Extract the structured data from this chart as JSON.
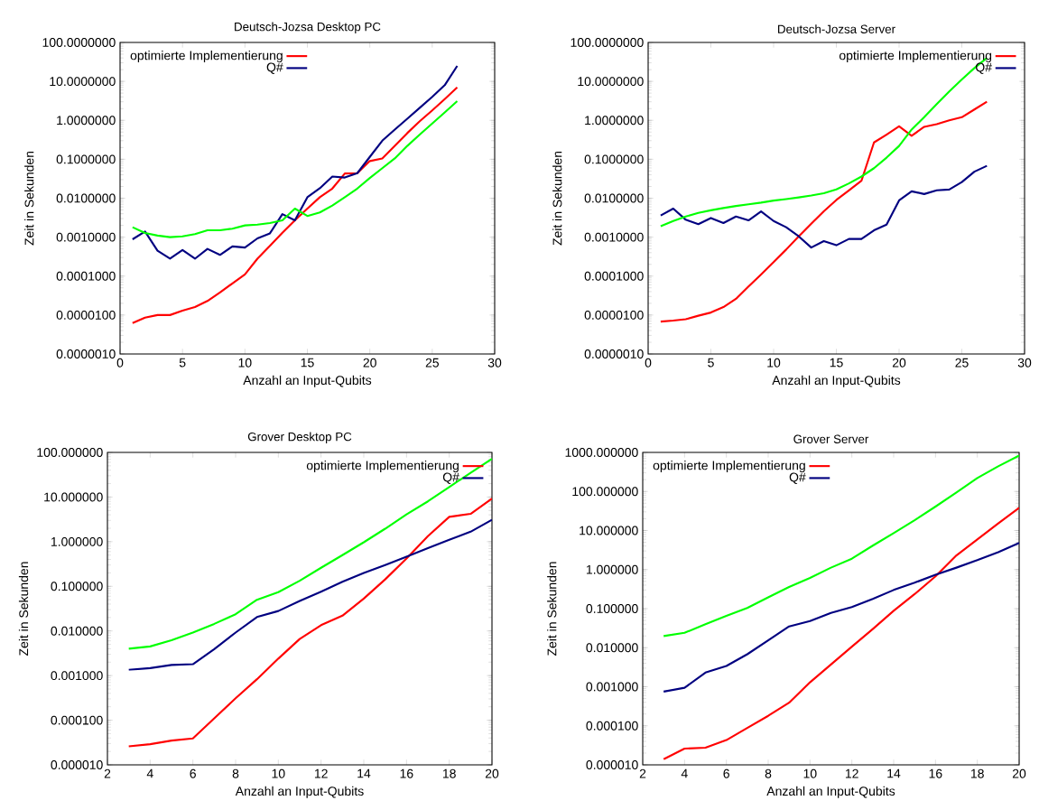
{
  "chart_data": [
    {
      "type": "line",
      "title": "Deutsch-Jozsa Desktop PC",
      "xlabel": "Anzahl an Input-Qubits",
      "ylabel": "Zeit in Sekunden",
      "log": true,
      "legend": "top left",
      "x": [
        1,
        2,
        3,
        4,
        5,
        6,
        7,
        8,
        9,
        10,
        11,
        12,
        13,
        14,
        15,
        16,
        17,
        18,
        19,
        20,
        21,
        22,
        23,
        24,
        25,
        26,
        27
      ],
      "xlim": [
        0,
        30
      ],
      "xticks": [
        0,
        5,
        10,
        15,
        20,
        25,
        30
      ],
      "ylim": [
        1e-06,
        100
      ],
      "yticks": [
        {
          "value": 1e-06,
          "label": "0.0000010"
        },
        {
          "value": 1e-05,
          "label": "0.0000100"
        },
        {
          "value": 0.0001,
          "label": "0.0001000"
        },
        {
          "value": 0.001,
          "label": "0.0010000"
        },
        {
          "value": 0.01,
          "label": "0.0100000"
        },
        {
          "value": 0.1,
          "label": "0.1000000"
        },
        {
          "value": 1,
          "label": "1.0000000"
        },
        {
          "value": 10,
          "label": "10.0000000"
        },
        {
          "value": 100,
          "label": "100.0000000"
        }
      ],
      "series": [
        {
          "name": "optimierte Implementierung",
          "color": "#ff0000",
          "values": [
            6.2e-06,
            8.6e-06,
            1e-05,
            1e-05,
            1.3e-05,
            1.6e-05,
            2.3e-05,
            3.8e-05,
            6.5e-05,
            0.00011,
            0.00028,
            0.0006,
            0.0013,
            0.0027,
            0.0054,
            0.0106,
            0.0177,
            0.043,
            0.044,
            0.09,
            0.105,
            0.22,
            0.47,
            0.95,
            1.8,
            3.5,
            7
          ]
        },
        {
          "name": "Q#",
          "color": "#000080",
          "values": [
            0.00088,
            0.0014,
            0.00045,
            0.00028,
            0.00047,
            0.00028,
            0.0005,
            0.00035,
            0.00058,
            0.00054,
            0.00093,
            0.00125,
            0.0039,
            0.0027,
            0.0106,
            0.018,
            0.036,
            0.034,
            0.044,
            0.115,
            0.3,
            0.58,
            1.1,
            2.1,
            4,
            8,
            25
          ]
        },
        {
          "color": "#00ff00",
          "values": [
            0.0018,
            0.00128,
            0.0011,
            0.001,
            0.00105,
            0.0012,
            0.0015,
            0.0015,
            0.00165,
            0.002,
            0.0021,
            0.0023,
            0.0027,
            0.0054,
            0.0035,
            0.0043,
            0.0065,
            0.0106,
            0.0177,
            0.033,
            0.059,
            0.105,
            0.22,
            0.43,
            0.83,
            1.6,
            3.1
          ]
        }
      ]
    },
    {
      "type": "line",
      "title": "Deutsch-Jozsa Server",
      "xlabel": "Anzahl an Input-Qubits",
      "ylabel": "Zeit in Sekunden",
      "log": true,
      "legend": "top right",
      "x": [
        1,
        2,
        3,
        4,
        5,
        6,
        7,
        8,
        9,
        10,
        11,
        12,
        13,
        14,
        15,
        16,
        17,
        18,
        19,
        20,
        21,
        22,
        23,
        24,
        25,
        26,
        27
      ],
      "xlim": [
        0,
        30
      ],
      "xticks": [
        0,
        5,
        10,
        15,
        20,
        25,
        30
      ],
      "ylim": [
        1e-06,
        100
      ],
      "yticks": [
        {
          "value": 1e-06,
          "label": "0.0000010"
        },
        {
          "value": 1e-05,
          "label": "0.0000100"
        },
        {
          "value": 0.0001,
          "label": "0.0001000"
        },
        {
          "value": 0.001,
          "label": "0.0010000"
        },
        {
          "value": 0.01,
          "label": "0.0100000"
        },
        {
          "value": 0.1,
          "label": "0.1000000"
        },
        {
          "value": 1,
          "label": "1.0000000"
        },
        {
          "value": 10,
          "label": "10.0000000"
        },
        {
          "value": 100,
          "label": "100.0000000"
        }
      ],
      "series": [
        {
          "name": "optimierte Implementierung",
          "color": "#ff0000",
          "values": [
            6.8e-06,
            7.2e-06,
            7.8e-06,
            9.6e-06,
            1.16e-05,
            1.6e-05,
            2.6e-05,
            5.4e-05,
            0.00011,
            0.00023,
            0.00048,
            0.00105,
            0.0022,
            0.0046,
            0.009,
            0.0158,
            0.028,
            0.27,
            0.43,
            0.7,
            0.4,
            0.68,
            0.8,
            1.0,
            1.2,
            1.9,
            3
          ]
        },
        {
          "name": "Q#",
          "color": "#000080",
          "values": [
            0.0036,
            0.0054,
            0.0028,
            0.00215,
            0.0031,
            0.0023,
            0.0034,
            0.0027,
            0.0046,
            0.0026,
            0.0018,
            0.00105,
            0.00054,
            0.00079,
            0.00062,
            0.0009,
            0.0009,
            0.0015,
            0.0021,
            0.0088,
            0.015,
            0.0128,
            0.016,
            0.0167,
            0.026,
            0.048,
            0.068
          ]
        },
        {
          "color": "#00ff00",
          "values": [
            0.0019,
            0.0026,
            0.0034,
            0.0042,
            0.0049,
            0.0056,
            0.0063,
            0.007,
            0.0077,
            0.0087,
            0.0095,
            0.0105,
            0.0117,
            0.0134,
            0.0168,
            0.024,
            0.036,
            0.059,
            0.11,
            0.22,
            0.58,
            1.2,
            2.6,
            5.5,
            11.2,
            22,
            40
          ]
        }
      ]
    },
    {
      "type": "line",
      "title": "Grover Desktop PC",
      "xlabel": "Anzahl an Input-Qubits",
      "ylabel": "Zeit in Sekunden",
      "log": true,
      "legend": "top right",
      "x": [
        3,
        4,
        5,
        6,
        7,
        8,
        9,
        10,
        11,
        12,
        13,
        14,
        15,
        16,
        17,
        18,
        19,
        20
      ],
      "xlim": [
        2,
        20
      ],
      "xticks": [
        2,
        4,
        6,
        8,
        10,
        12,
        14,
        16,
        18,
        20
      ],
      "ylim": [
        1e-05,
        100
      ],
      "yticks": [
        {
          "value": 1e-05,
          "label": "0.000010"
        },
        {
          "value": 0.0001,
          "label": "0.000100"
        },
        {
          "value": 0.001,
          "label": "0.001000"
        },
        {
          "value": 0.01,
          "label": "0.010000"
        },
        {
          "value": 0.1,
          "label": "0.100000"
        },
        {
          "value": 1,
          "label": "1.000000"
        },
        {
          "value": 10,
          "label": "10.000000"
        },
        {
          "value": 100,
          "label": "100.000000"
        }
      ],
      "series": [
        {
          "name": "optimierte Implementierung",
          "color": "#ff0000",
          "values": [
            2.6e-05,
            2.9e-05,
            3.5e-05,
            3.9e-05,
            0.00011,
            0.00031,
            0.00083,
            0.0024,
            0.0066,
            0.0135,
            0.022,
            0.053,
            0.143,
            0.42,
            1.33,
            3.6,
            4.2,
            9.2
          ]
        },
        {
          "name": "Q#",
          "color": "#000080",
          "values": [
            0.00135,
            0.00147,
            0.00173,
            0.0018,
            0.0039,
            0.0092,
            0.0205,
            0.028,
            0.047,
            0.076,
            0.126,
            0.2,
            0.3,
            0.46,
            0.72,
            1.1,
            1.67,
            3.1
          ]
        },
        {
          "color": "#00ff00",
          "values": [
            0.004,
            0.0045,
            0.0062,
            0.0092,
            0.0144,
            0.0237,
            0.05,
            0.074,
            0.133,
            0.26,
            0.5,
            0.97,
            1.95,
            4.1,
            8,
            16.8,
            35,
            72
          ]
        }
      ]
    },
    {
      "type": "line",
      "title": "Grover Server",
      "xlabel": "Anzahl an Input-Qubits",
      "ylabel": "Zeit in Sekunden",
      "log": true,
      "legend": "top left",
      "x": [
        3,
        4,
        5,
        6,
        7,
        8,
        9,
        10,
        11,
        12,
        13,
        14,
        15,
        16,
        17,
        18,
        19,
        20
      ],
      "xlim": [
        2,
        20
      ],
      "xticks": [
        2,
        4,
        6,
        8,
        10,
        12,
        14,
        16,
        18,
        20
      ],
      "ylim": [
        1e-05,
        1000
      ],
      "yticks": [
        {
          "value": 1e-05,
          "label": "0.000010"
        },
        {
          "value": 0.0001,
          "label": "0.000100"
        },
        {
          "value": 0.001,
          "label": "0.001000"
        },
        {
          "value": 0.01,
          "label": "0.010000"
        },
        {
          "value": 0.1,
          "label": "0.100000"
        },
        {
          "value": 1,
          "label": "1.000000"
        },
        {
          "value": 10,
          "label": "10.000000"
        },
        {
          "value": 100,
          "label": "100.000000"
        },
        {
          "value": 1000,
          "label": "1000.000000"
        }
      ],
      "series": [
        {
          "name": "optimierte Implementierung",
          "color": "#ff0000",
          "values": [
            1.4e-05,
            2.6e-05,
            2.75e-05,
            4.3e-05,
            8.8e-05,
            0.00018,
            0.00039,
            0.0013,
            0.0037,
            0.0106,
            0.03,
            0.088,
            0.235,
            0.67,
            2.3,
            5.9,
            15.2,
            38
          ]
        },
        {
          "name": "Q#",
          "color": "#000080",
          "values": [
            0.00075,
            0.00094,
            0.0023,
            0.0034,
            0.0068,
            0.0155,
            0.035,
            0.048,
            0.078,
            0.11,
            0.177,
            0.3,
            0.46,
            0.74,
            1.12,
            1.74,
            2.8,
            4.8
          ]
        },
        {
          "color": "#00ff00",
          "values": [
            0.0198,
            0.024,
            0.04,
            0.065,
            0.104,
            0.195,
            0.36,
            0.61,
            1.12,
            1.9,
            4.1,
            8.6,
            18.4,
            41,
            94,
            220,
            440,
            830
          ]
        }
      ]
    }
  ]
}
